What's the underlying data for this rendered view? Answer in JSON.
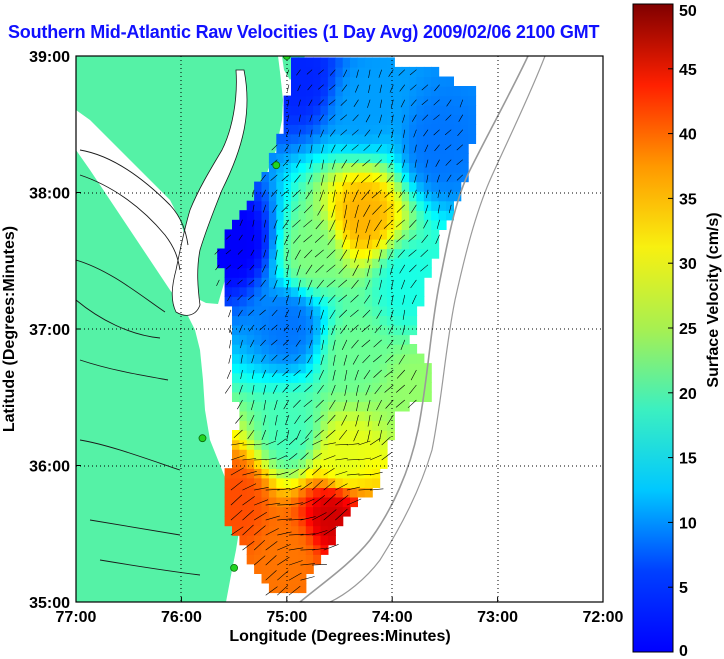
{
  "title": "Southern Mid-Atlantic Raw Velocities (1 Day Avg) 2009/02/06 2100 GMT",
  "xaxis": {
    "label": "Longitude (Degrees:Minutes)",
    "ticks": [
      "77:00",
      "76:00",
      "75:00",
      "74:00",
      "73:00",
      "72:00"
    ],
    "range": [
      -77,
      -72
    ]
  },
  "yaxis": {
    "label": "Latitude (Degrees:Minutes)",
    "ticks": [
      "35:00",
      "36:00",
      "37:00",
      "38:00",
      "39:00"
    ],
    "range": [
      35,
      39
    ]
  },
  "colorbar": {
    "label": "Surface Velocity (cm/s)",
    "ticks": [
      "0",
      "5",
      "10",
      "15",
      "20",
      "25",
      "30",
      "35",
      "40",
      "45",
      "50"
    ],
    "range": [
      0,
      50
    ],
    "colormap": "jet"
  },
  "colors": {
    "land": "#55f2a6",
    "title": "#1010ff",
    "stations": "#22d422",
    "bathymetry": "#9a9a9a"
  },
  "grid": true,
  "chart_data": {
    "type": "heatmap",
    "title": "Southern Mid-Atlantic Raw Velocities (1 Day Avg) 2009/02/06 2100 GMT",
    "xlabel": "Longitude (Degrees:Minutes)",
    "ylabel": "Latitude (Degrees:Minutes)",
    "xlim": [
      -77,
      -72
    ],
    "ylim": [
      35,
      39
    ],
    "zlabel": "Surface Velocity (cm/s)",
    "zlim": [
      0,
      50
    ],
    "speed_samples": [
      {
        "lon": -74.9,
        "lat": 38.8,
        "speed": 8
      },
      {
        "lon": -74.3,
        "lat": 38.6,
        "speed": 14
      },
      {
        "lon": -73.6,
        "lat": 38.3,
        "speed": 12
      },
      {
        "lon": -74.3,
        "lat": 37.8,
        "speed": 35
      },
      {
        "lon": -75.5,
        "lat": 37.6,
        "speed": 6
      },
      {
        "lon": -74.8,
        "lat": 37.5,
        "speed": 25
      },
      {
        "lon": -73.9,
        "lat": 37.3,
        "speed": 20
      },
      {
        "lon": -75.0,
        "lat": 37.0,
        "speed": 12
      },
      {
        "lon": -74.4,
        "lat": 36.8,
        "speed": 24
      },
      {
        "lon": -73.8,
        "lat": 36.5,
        "speed": 26
      },
      {
        "lon": -75.0,
        "lat": 36.2,
        "speed": 22
      },
      {
        "lon": -74.5,
        "lat": 36.0,
        "speed": 30
      },
      {
        "lon": -75.5,
        "lat": 35.7,
        "speed": 40
      },
      {
        "lon": -74.6,
        "lat": 35.6,
        "speed": 46
      },
      {
        "lon": -75.0,
        "lat": 35.3,
        "speed": 38
      }
    ],
    "stations": [
      {
        "lon": -75.0,
        "lat": 39.0
      },
      {
        "lon": -75.1,
        "lat": 38.2
      },
      {
        "lon": -75.8,
        "lat": 36.2
      },
      {
        "lon": -75.5,
        "lat": 35.25
      }
    ]
  }
}
